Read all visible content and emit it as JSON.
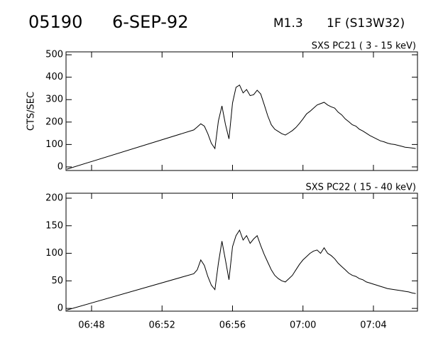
{
  "header": {
    "event": "05190",
    "date": "6-SEP-92",
    "class": "M1.3",
    "flare": "1F (S13W32)"
  },
  "chart_data": [
    {
      "type": "line",
      "title": "SXS PC21  (  3 - 15 keV)",
      "ylabel": "CTS/SEC",
      "color": "#000000",
      "x": [
        406.6,
        413.8,
        414.0,
        414.2,
        414.4,
        414.6,
        414.8,
        415.0,
        415.2,
        415.4,
        415.6,
        415.8,
        416.0,
        416.2,
        416.4,
        416.6,
        416.8,
        417.0,
        417.2,
        417.4,
        417.6,
        417.8,
        418.0,
        418.2,
        418.4,
        418.6,
        418.8,
        419.0,
        419.2,
        419.4,
        419.6,
        419.8,
        420.0,
        420.2,
        420.4,
        420.6,
        420.8,
        421.0,
        421.2,
        421.4,
        421.6,
        421.8,
        422.0,
        422.2,
        422.4,
        422.6,
        422.8,
        423.0,
        423.2,
        423.4,
        423.6,
        423.8,
        424.0,
        424.2,
        424.4,
        424.6,
        424.8,
        425.0,
        425.2,
        425.4,
        425.6,
        425.8,
        426.0,
        426.2,
        426.4
      ],
      "values": [
        -10,
        165,
        178,
        192,
        182,
        148,
        105,
        82,
        205,
        272,
        190,
        125,
        285,
        355,
        365,
        330,
        345,
        318,
        322,
        342,
        325,
        278,
        228,
        188,
        168,
        158,
        148,
        142,
        152,
        162,
        176,
        194,
        214,
        236,
        248,
        262,
        276,
        282,
        288,
        276,
        268,
        262,
        244,
        232,
        214,
        202,
        188,
        182,
        168,
        160,
        150,
        140,
        132,
        124,
        116,
        112,
        106,
        102,
        100,
        96,
        92,
        88,
        86,
        84,
        82
      ],
      "xlim": [
        406.55,
        426.5
      ],
      "ylim": [
        -16,
        513
      ],
      "yticks": [
        0,
        100,
        200,
        300,
        400,
        500
      ]
    },
    {
      "type": "line",
      "title": "SXS PC22  ( 15 - 40 keV)",
      "color": "#000000",
      "x": [
        406.6,
        413.8,
        414.0,
        414.2,
        414.4,
        414.6,
        414.8,
        415.0,
        415.2,
        415.4,
        415.6,
        415.8,
        416.0,
        416.2,
        416.4,
        416.6,
        416.8,
        417.0,
        417.2,
        417.4,
        417.6,
        417.8,
        418.0,
        418.2,
        418.4,
        418.6,
        418.8,
        419.0,
        419.2,
        419.4,
        419.6,
        419.8,
        420.0,
        420.2,
        420.4,
        420.6,
        420.8,
        421.0,
        421.2,
        421.4,
        421.6,
        421.8,
        422.0,
        422.2,
        422.4,
        422.6,
        422.8,
        423.0,
        423.2,
        423.4,
        423.6,
        423.8,
        424.0,
        424.2,
        424.4,
        424.6,
        424.8,
        425.0,
        425.2,
        425.4,
        425.6,
        425.8,
        426.0,
        426.2,
        426.4
      ],
      "values": [
        -3,
        63,
        70,
        88,
        78,
        58,
        42,
        34,
        82,
        122,
        88,
        52,
        112,
        132,
        142,
        124,
        132,
        118,
        126,
        132,
        114,
        98,
        84,
        70,
        60,
        54,
        50,
        48,
        54,
        60,
        70,
        80,
        88,
        94,
        100,
        104,
        106,
        100,
        110,
        100,
        96,
        90,
        82,
        76,
        70,
        64,
        60,
        58,
        54,
        52,
        48,
        46,
        44,
        42,
        40,
        38,
        36,
        35,
        34,
        33,
        32,
        31,
        30,
        28,
        27
      ],
      "xlim": [
        406.55,
        426.5
      ],
      "ylim": [
        -5,
        209
      ],
      "yticks": [
        0,
        50,
        100,
        150,
        200
      ],
      "xticks": [
        {
          "value": 408,
          "label": "06:48"
        },
        {
          "value": 412,
          "label": "06:52"
        },
        {
          "value": 416,
          "label": "06:56"
        },
        {
          "value": 420,
          "label": "07:00"
        },
        {
          "value": 424,
          "label": "07:04"
        }
      ]
    }
  ]
}
